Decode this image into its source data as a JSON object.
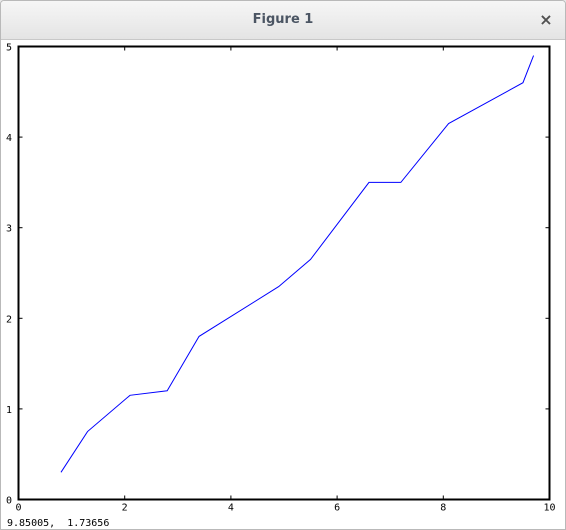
{
  "window": {
    "title": "Figure 1",
    "close_glyph": "×"
  },
  "status": {
    "coords": "9.85005,  1.73656"
  },
  "chart_data": {
    "type": "line",
    "title": "",
    "xlabel": "",
    "ylabel": "",
    "xlim": [
      0,
      10
    ],
    "ylim": [
      0,
      5
    ],
    "xticks": [
      0,
      2,
      4,
      6,
      8,
      10
    ],
    "yticks": [
      0,
      1,
      2,
      3,
      4,
      5
    ],
    "grid": false,
    "series": [
      {
        "color": "#0000ff",
        "x": [
          0.8,
          1.3,
          2.1,
          2.8,
          3.4,
          4.9,
          5.5,
          6.6,
          7.2,
          8.1,
          9.5,
          9.7
        ],
        "y": [
          0.3,
          0.75,
          1.15,
          1.2,
          1.8,
          2.35,
          2.65,
          3.5,
          3.5,
          4.15,
          4.6,
          4.9
        ]
      }
    ]
  }
}
